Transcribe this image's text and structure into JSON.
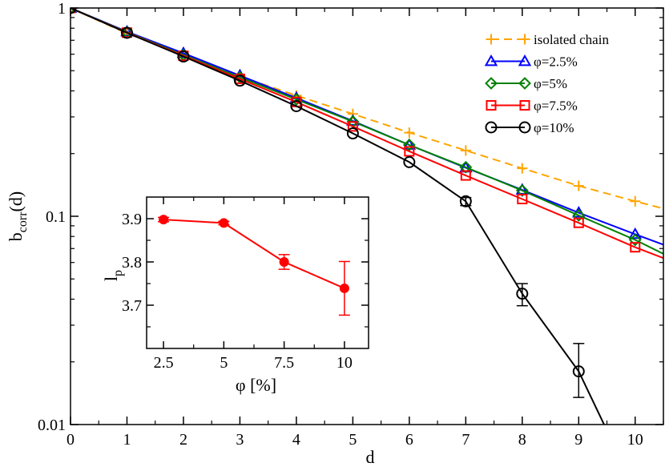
{
  "chart_data": [
    {
      "type": "line",
      "yscale": "log",
      "xlabel": "d",
      "ylabel_main": "b",
      "ylabel_sub": "corr",
      "ylabel_tail": "(d)",
      "xlim": [
        0,
        10.5
      ],
      "ylim": [
        0.01,
        1
      ],
      "xticks": [
        0,
        1,
        2,
        3,
        4,
        5,
        6,
        7,
        8,
        9,
        10
      ],
      "yticks": [
        {
          "value": 0.01,
          "label": "0.01"
        },
        {
          "value": 0.1,
          "label": "0.1"
        },
        {
          "value": 1,
          "label": "1"
        }
      ],
      "series": [
        {
          "name": "isolated chain",
          "color": "#ffa500",
          "marker": "plus",
          "dashed": true,
          "x": [
            0,
            1,
            2,
            3,
            4,
            5,
            6,
            7,
            8,
            9,
            10,
            10.5
          ],
          "y": [
            1,
            0.755,
            0.597,
            0.47,
            0.38,
            0.31,
            0.252,
            0.207,
            0.17,
            0.14,
            0.118,
            0.109
          ]
        },
        {
          "name": "φ=2.5%",
          "color": "#0000ff",
          "marker": "triangle",
          "dashed": false,
          "x": [
            0,
            1,
            2,
            3,
            4,
            5,
            6,
            7,
            8,
            9,
            10,
            10.5
          ],
          "y": [
            1,
            0.77,
            0.607,
            0.474,
            0.37,
            0.287,
            0.22,
            0.171,
            0.134,
            0.104,
            0.082,
            0.073
          ]
        },
        {
          "name": "φ=5%",
          "color": "#008000",
          "marker": "diamond",
          "dashed": false,
          "x": [
            0,
            1,
            2,
            3,
            4,
            5,
            6,
            7,
            8,
            9,
            10,
            10.5
          ],
          "y": [
            1,
            0.765,
            0.595,
            0.465,
            0.364,
            0.285,
            0.22,
            0.172,
            0.133,
            0.101,
            0.077,
            0.066
          ]
        },
        {
          "name": "φ=7.5%",
          "color": "#ff0000",
          "marker": "square",
          "dashed": false,
          "x": [
            0,
            1,
            2,
            3,
            4,
            5,
            6,
            7,
            8,
            9,
            10,
            10.5
          ],
          "y": [
            1,
            0.762,
            0.59,
            0.457,
            0.354,
            0.27,
            0.205,
            0.157,
            0.121,
            0.093,
            0.071,
            0.063
          ]
        },
        {
          "name": "φ=10%",
          "color": "#000000",
          "marker": "circle",
          "dashed": false,
          "x": [
            0,
            1,
            2,
            3,
            4,
            5,
            6,
            7,
            8,
            9,
            9.45
          ],
          "y": [
            1,
            0.76,
            0.585,
            0.448,
            0.338,
            0.25,
            0.182,
            0.118,
            0.0425,
            0.018,
            0.01
          ],
          "errors": {
            "x": [
              7,
              8,
              9
            ],
            "lo": [
              0.1125,
              0.0372,
              0.0135
            ],
            "hi": [
              0.123,
              0.0475,
              0.0245
            ]
          }
        }
      ],
      "legend_position": "top-right"
    },
    {
      "type": "line",
      "inset": true,
      "xlabel": "φ [%]",
      "ylabel_main": "l",
      "ylabel_sub": "p",
      "xlim": [
        1.8,
        11.0
      ],
      "ylim": [
        3.6,
        3.95
      ],
      "xticks": [
        {
          "value": 2.5,
          "label": "2.5"
        },
        {
          "value": 5,
          "label": "5"
        },
        {
          "value": 7.5,
          "label": "7.5"
        },
        {
          "value": 10,
          "label": "10"
        }
      ],
      "yticks": [
        {
          "value": 3.7,
          "label": "3.7"
        },
        {
          "value": 3.8,
          "label": "3.8"
        },
        {
          "value": 3.9,
          "label": "3.9"
        }
      ],
      "series": [
        {
          "name": "l_p",
          "color": "#ff0000",
          "marker": "filled-circle",
          "x": [
            2.5,
            5,
            7.5,
            10
          ],
          "y": [
            3.898,
            3.89,
            3.8,
            3.739
          ],
          "err": [
            0.005,
            0.004,
            0.017,
            0.062
          ]
        }
      ]
    }
  ]
}
